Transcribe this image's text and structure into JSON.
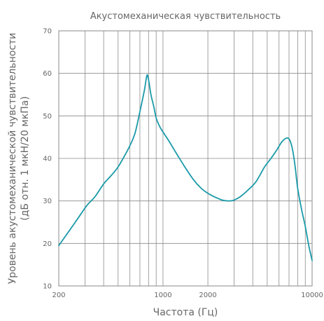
{
  "chart_data": {
    "type": "line",
    "title": "Акустомеханическая чувствительность",
    "xlabel": "Частота (Гц)",
    "ylabel_line1": "Уровень акустомеханической чувствительности",
    "ylabel_line2": "(дБ отн. 1 мкН/20 мкПа)",
    "x_scale": "log",
    "xlim": [
      200,
      10000
    ],
    "ylim": [
      10,
      70
    ],
    "x_ticks": [
      200,
      1000,
      2000,
      10000
    ],
    "x_tick_labels": [
      "200",
      "1000",
      "2000",
      "10000"
    ],
    "x_minor_gridlines": [
      300,
      400,
      500,
      600,
      700,
      800,
      900,
      3000,
      4000,
      5000,
      6000,
      7000,
      8000,
      9000
    ],
    "y_ticks": [
      10,
      20,
      30,
      40,
      50,
      60,
      70
    ],
    "y_tick_labels": [
      "10",
      "20",
      "30",
      "40",
      "50",
      "60",
      "70"
    ],
    "grid": true,
    "series": [
      {
        "color": "#1a9aa8",
        "x": [
          200,
          230,
          270,
          310,
          350,
          400,
          450,
          500,
          560,
          600,
          650,
          700,
          750,
          780,
          800,
          830,
          870,
          900,
          950,
          1000,
          1100,
          1200,
          1400,
          1600,
          1800,
          2000,
          2200,
          2500,
          2800,
          3000,
          3300,
          3700,
          4200,
          4800,
          5300,
          5800,
          6300,
          6800,
          7100,
          7400,
          7700,
          8000,
          8500,
          9000,
          9500,
          10000
        ],
        "y": [
          19.5,
          22.5,
          26,
          29,
          31,
          34,
          36,
          38,
          41,
          43,
          46,
          51,
          56,
          59.5,
          58.5,
          55,
          52,
          49.5,
          47.5,
          46.2,
          44,
          41.8,
          38,
          35,
          33,
          31.8,
          31,
          30.2,
          30,
          30.2,
          31,
          32.5,
          34.5,
          38,
          40,
          42,
          44,
          44.8,
          44.2,
          42,
          38,
          33,
          28,
          24,
          19.5,
          16
        ]
      }
    ]
  }
}
